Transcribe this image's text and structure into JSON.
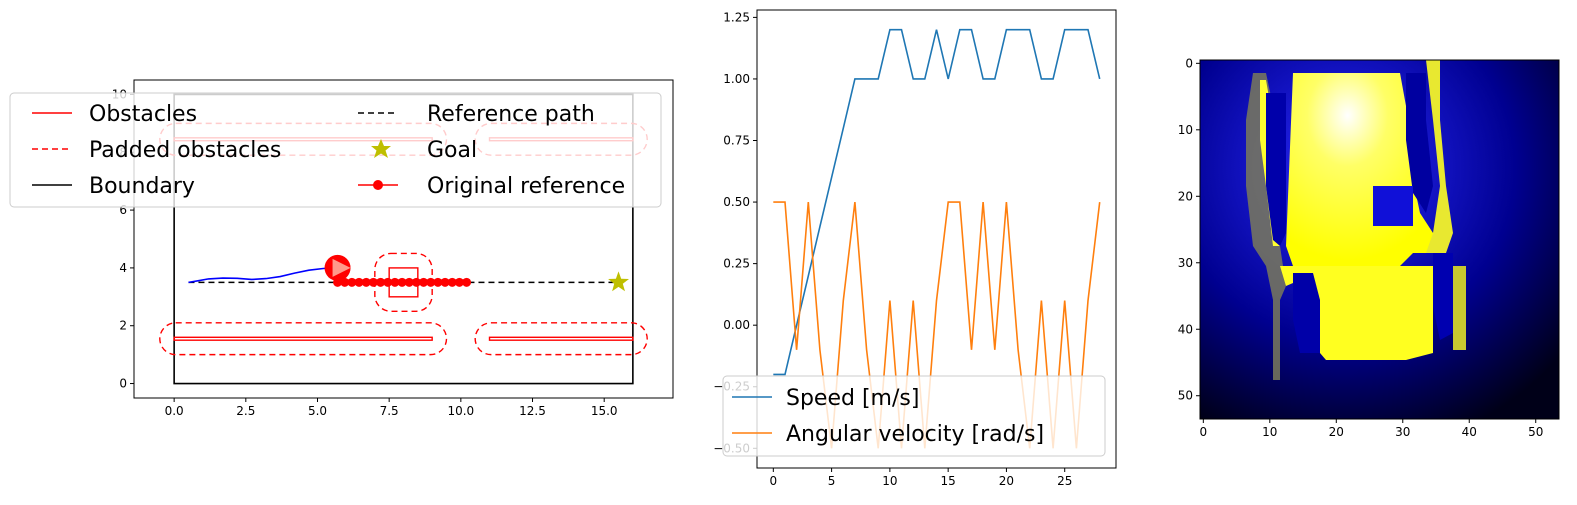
{
  "chart_data": [
    {
      "type": "line",
      "title": "",
      "xlabel": "",
      "ylabel": "",
      "xlim": [
        -1.4,
        17.4
      ],
      "ylim": [
        -0.5,
        10.5
      ],
      "xticks": [
        0.0,
        2.5,
        5.0,
        7.5,
        10.0,
        12.5,
        15.0
      ],
      "xtick_labels": [
        "0.0",
        "2.5",
        "5.0",
        "7.5",
        "10.0",
        "12.5",
        "15.0"
      ],
      "yticks": [
        0,
        2,
        4,
        6,
        8,
        10
      ],
      "ytick_labels": [
        "0",
        "2",
        "4",
        "6",
        "8",
        "10"
      ],
      "grid": false,
      "legend_position": "top-left",
      "legend": [
        "Obstacles",
        "Padded obstacles",
        "Boundary",
        "Reference path",
        "Goal",
        "Original reference"
      ],
      "colors": {
        "obstacles": "#ff0000",
        "boundary": "#000000",
        "reference": "#000000",
        "goal": "#bfbf00",
        "trajectory": "#0000ff",
        "original": "#ff0000"
      },
      "boundary": [
        [
          0,
          0
        ],
        [
          16,
          0
        ],
        [
          16,
          10
        ],
        [
          0,
          10
        ]
      ],
      "obstacles": [
        {
          "x": [
            0,
            9
          ],
          "y": [
            1.5,
            1.6
          ]
        },
        {
          "x": [
            11,
            16
          ],
          "y": [
            1.5,
            1.6
          ]
        },
        {
          "x": [
            0,
            9
          ],
          "y": [
            8.4,
            8.5
          ]
        },
        {
          "x": [
            11,
            16
          ],
          "y": [
            8.4,
            8.5
          ]
        },
        {
          "x": [
            7.5,
            8.5
          ],
          "y": [
            3.0,
            4.0
          ]
        }
      ],
      "reference_path": {
        "x": [
          0.5,
          15.5
        ],
        "y": [
          3.5,
          3.5
        ]
      },
      "goal": {
        "x": 15.5,
        "y": 3.5
      },
      "original_reference": {
        "x": [
          5.7,
          5.95,
          6.2,
          6.45,
          6.7,
          6.95,
          7.2,
          7.45,
          7.7,
          7.95,
          8.2,
          8.45,
          8.7,
          8.95,
          9.2,
          9.45,
          9.7,
          9.95,
          10.2
        ],
        "y": 3.5
      },
      "trajectory": {
        "x": [
          0.5,
          0.8,
          1.2,
          1.7,
          2.2,
          2.7,
          3.2,
          3.7,
          4.2,
          4.7,
          5.2,
          5.6
        ],
        "y": [
          3.5,
          3.55,
          3.62,
          3.65,
          3.64,
          3.6,
          3.63,
          3.7,
          3.82,
          3.92,
          3.98,
          4.0
        ]
      },
      "robot": {
        "x": 5.7,
        "y": 4.0
      }
    },
    {
      "type": "line",
      "title": "",
      "xlabel": "",
      "ylabel": "",
      "xlim": [
        -1.4,
        29.4
      ],
      "ylim": [
        -0.58,
        1.28
      ],
      "xticks": [
        0,
        5,
        10,
        15,
        20,
        25
      ],
      "yticks": [
        -0.5,
        -0.25,
        0.0,
        0.25,
        0.5,
        0.75,
        1.0,
        1.25
      ],
      "ytick_labels": [
        "−0.50",
        "−0.25",
        "0.00",
        "0.25",
        "0.50",
        "0.75",
        "1.00",
        "1.25"
      ],
      "grid": false,
      "legend_position": "bottom-left",
      "x": [
        0,
        1,
        2,
        3,
        4,
        5,
        6,
        7,
        8,
        9,
        10,
        11,
        12,
        13,
        14,
        15,
        16,
        17,
        18,
        19,
        20,
        21,
        22,
        23,
        24,
        25,
        26,
        27,
        28
      ],
      "series": [
        {
          "name": "Speed [m/s]",
          "color": "#1f77b4",
          "values": [
            -0.2,
            -0.2,
            0.0,
            0.2,
            0.4,
            0.6,
            0.8,
            1.0,
            1.0,
            1.0,
            1.2,
            1.2,
            1.0,
            1.0,
            1.2,
            1.0,
            1.2,
            1.2,
            1.0,
            1.0,
            1.2,
            1.2,
            1.2,
            1.0,
            1.0,
            1.2,
            1.2,
            1.2,
            1.0
          ]
        },
        {
          "name": "Angular velocity [rad/s]",
          "color": "#ff7f0e",
          "values": [
            0.5,
            0.5,
            -0.1,
            0.5,
            -0.1,
            -0.5,
            0.1,
            0.5,
            -0.1,
            -0.5,
            0.1,
            -0.5,
            0.1,
            -0.5,
            0.1,
            0.5,
            0.5,
            -0.1,
            0.5,
            -0.1,
            0.5,
            -0.1,
            -0.5,
            0.1,
            -0.5,
            0.1,
            -0.5,
            0.1,
            0.5
          ]
        }
      ]
    },
    {
      "type": "heatmap",
      "title": "",
      "xlabel": "",
      "ylabel": "",
      "xticks": [
        0,
        10,
        20,
        30,
        40,
        50
      ],
      "yticks": [
        0,
        10,
        20,
        30,
        40,
        50
      ],
      "xlim": [
        -0.5,
        53.5
      ],
      "ylim": [
        53.5,
        -0.5
      ],
      "colormap": "black-blue-white-yellow",
      "free_space_color": "#ffff40",
      "obstacle_box": {
        "x": [
          26,
          29
        ],
        "y": [
          19,
          24
        ]
      }
    }
  ]
}
